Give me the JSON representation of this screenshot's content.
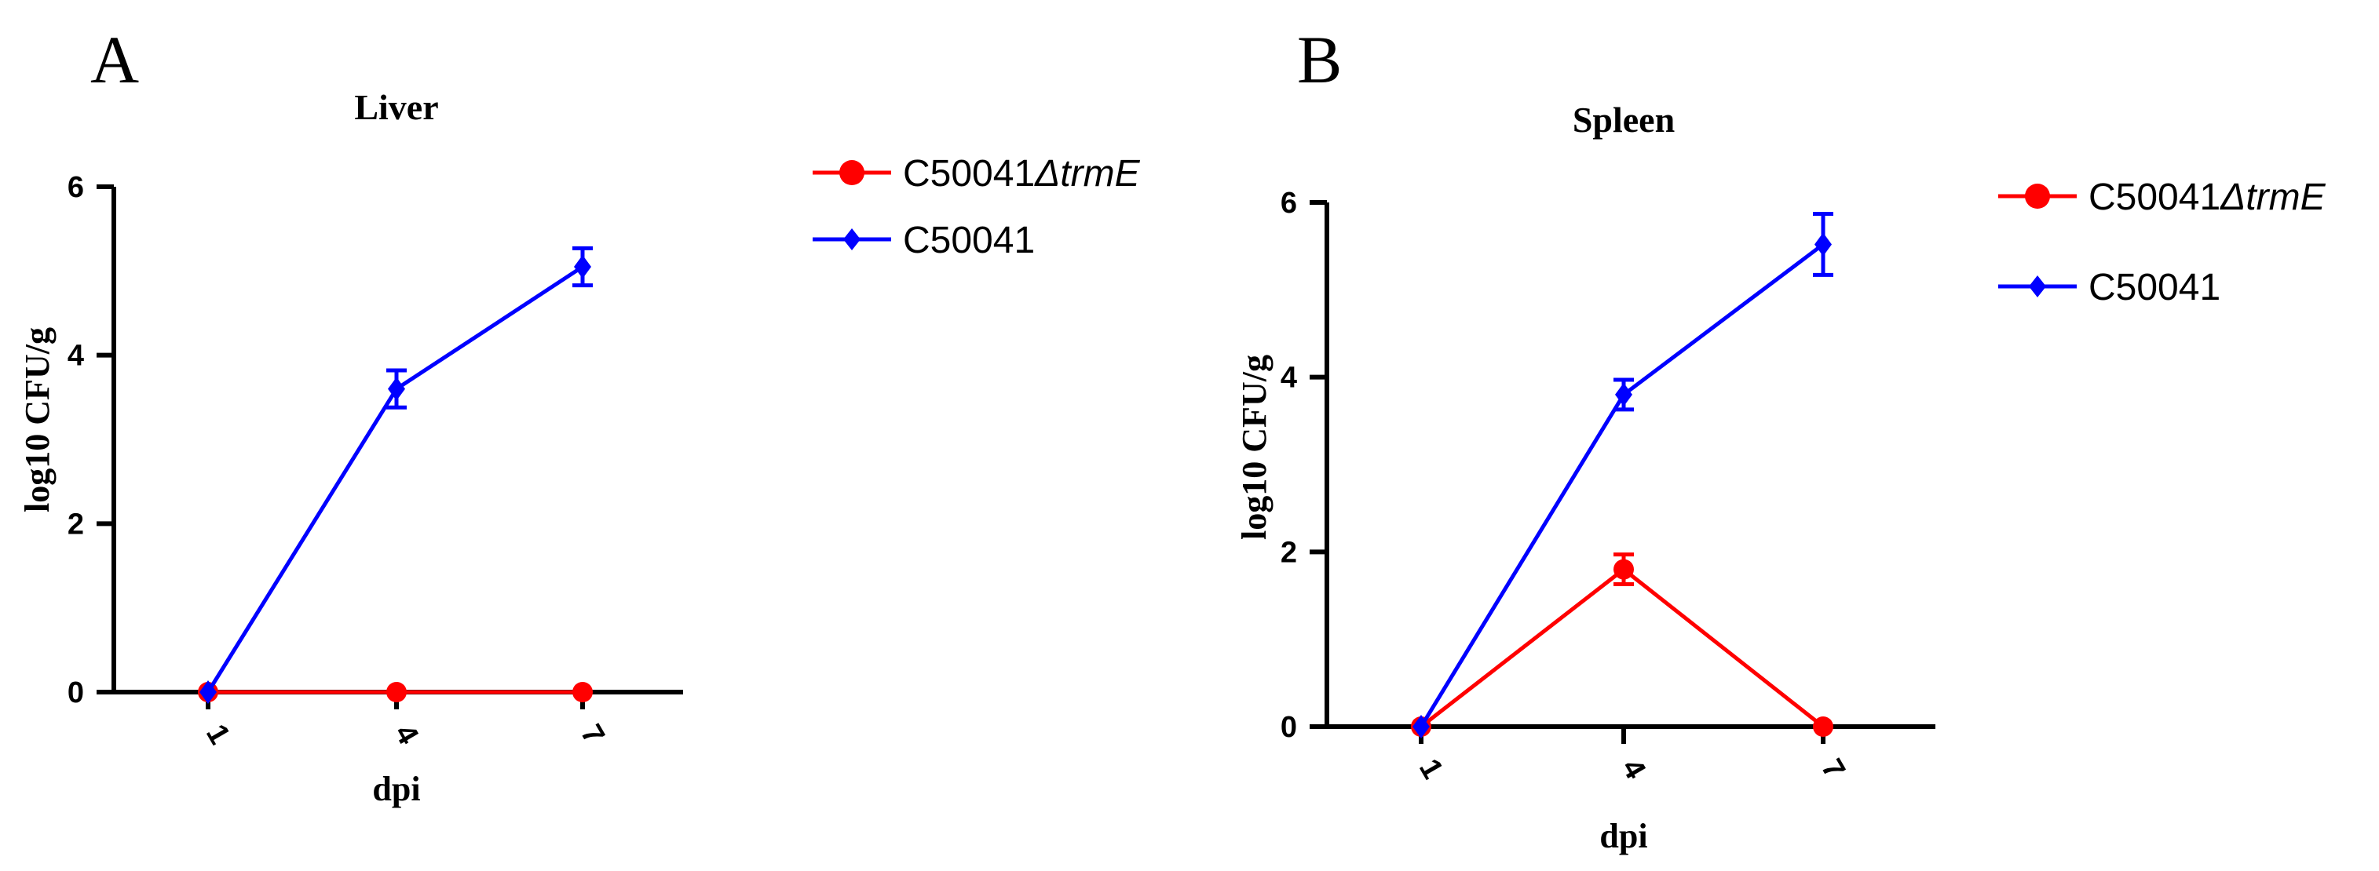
{
  "chart_data": [
    {
      "panel": "A",
      "type": "line",
      "title": "Liver",
      "xlabel": "dpi",
      "ylabel": "log10 CFU/g",
      "categories": [
        "1",
        "4",
        "7"
      ],
      "ylim": [
        0,
        6
      ],
      "yticks": [
        "0",
        "2",
        "4",
        "6"
      ],
      "legend_position": "right",
      "series": [
        {
          "name": "C50041",
          "name_italic": "ΔtrmE",
          "color": "#ff0000",
          "marker": "circle",
          "values": [
            0,
            0,
            0
          ],
          "errors": [
            0,
            0,
            0
          ]
        },
        {
          "name": "C50041",
          "name_italic": "",
          "color": "#0000ff",
          "marker": "diamond",
          "values": [
            0,
            3.6,
            5.05
          ],
          "errors": [
            0,
            0.22,
            0.22
          ]
        }
      ]
    },
    {
      "panel": "B",
      "type": "line",
      "title": "Spleen",
      "xlabel": "dpi",
      "ylabel": "log10 CFU/g",
      "categories": [
        "1",
        "4",
        "7"
      ],
      "ylim": [
        0,
        6
      ],
      "yticks": [
        "0",
        "2",
        "4",
        "6"
      ],
      "legend_position": "right",
      "series": [
        {
          "name": "C50041",
          "name_italic": "ΔtrmE",
          "color": "#ff0000",
          "marker": "circle",
          "values": [
            0,
            1.8,
            0
          ],
          "errors": [
            0,
            0.17,
            0
          ]
        },
        {
          "name": "C50041",
          "name_italic": "",
          "color": "#0000ff",
          "marker": "diamond",
          "values": [
            0,
            3.8,
            5.52
          ],
          "errors": [
            0,
            0.17,
            0.35
          ]
        }
      ]
    }
  ]
}
